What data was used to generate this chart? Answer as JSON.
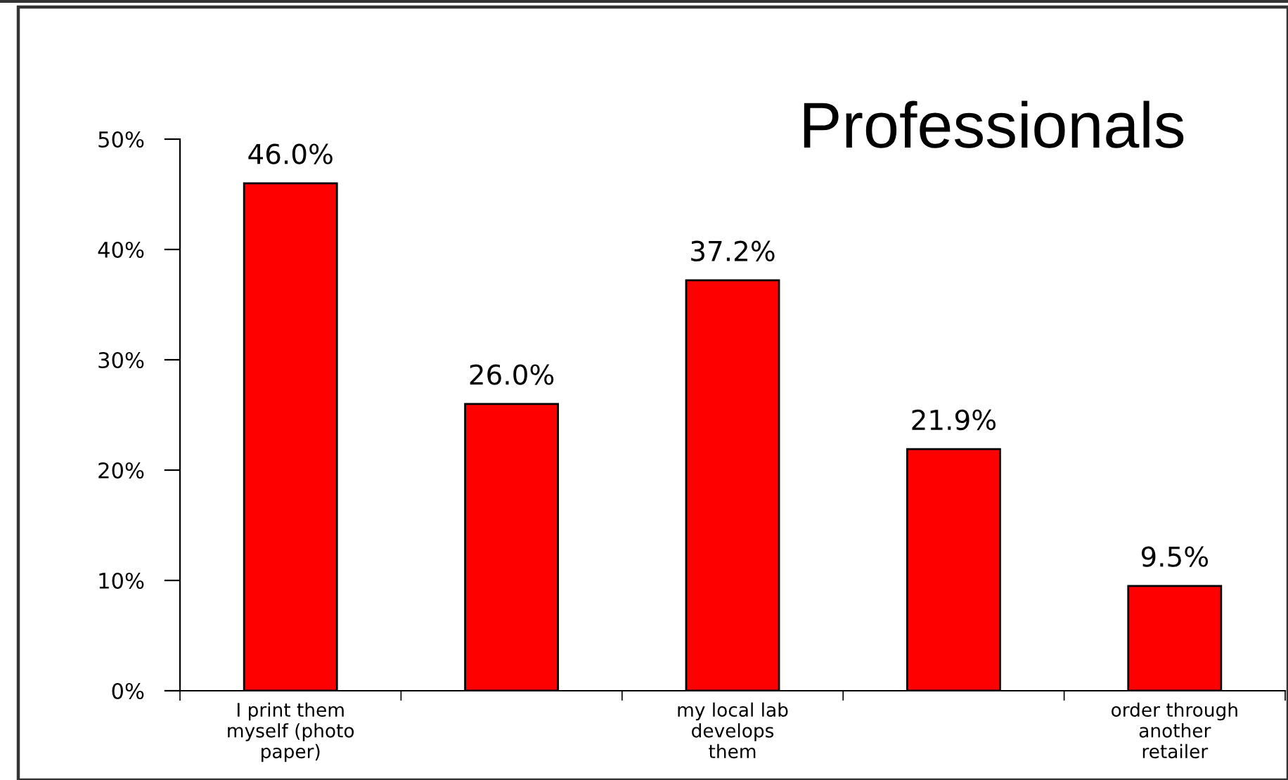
{
  "chart_data": {
    "type": "bar",
    "title": "Professionals",
    "categories": [
      "I print them\nmyself (photo\npaper)",
      null,
      "my local lab\ndevelops\nthem",
      null,
      "order through\nanother\nretailer"
    ],
    "values": [
      46.0,
      26.0,
      37.2,
      21.9,
      9.5
    ],
    "value_labels": [
      "46.0%",
      "26.0%",
      "37.2%",
      "21.9%",
      "9.5%"
    ],
    "color": "#ff0000",
    "ylim": [
      0,
      50
    ],
    "yticks": [
      {
        "value": 0,
        "label": "0%"
      },
      {
        "value": 10,
        "label": "10%"
      },
      {
        "value": 20,
        "label": "20%"
      },
      {
        "value": 30,
        "label": "30%"
      },
      {
        "value": 40,
        "label": "40%"
      },
      {
        "value": 50,
        "label": "50%"
      }
    ],
    "grid": false,
    "legend": false
  }
}
